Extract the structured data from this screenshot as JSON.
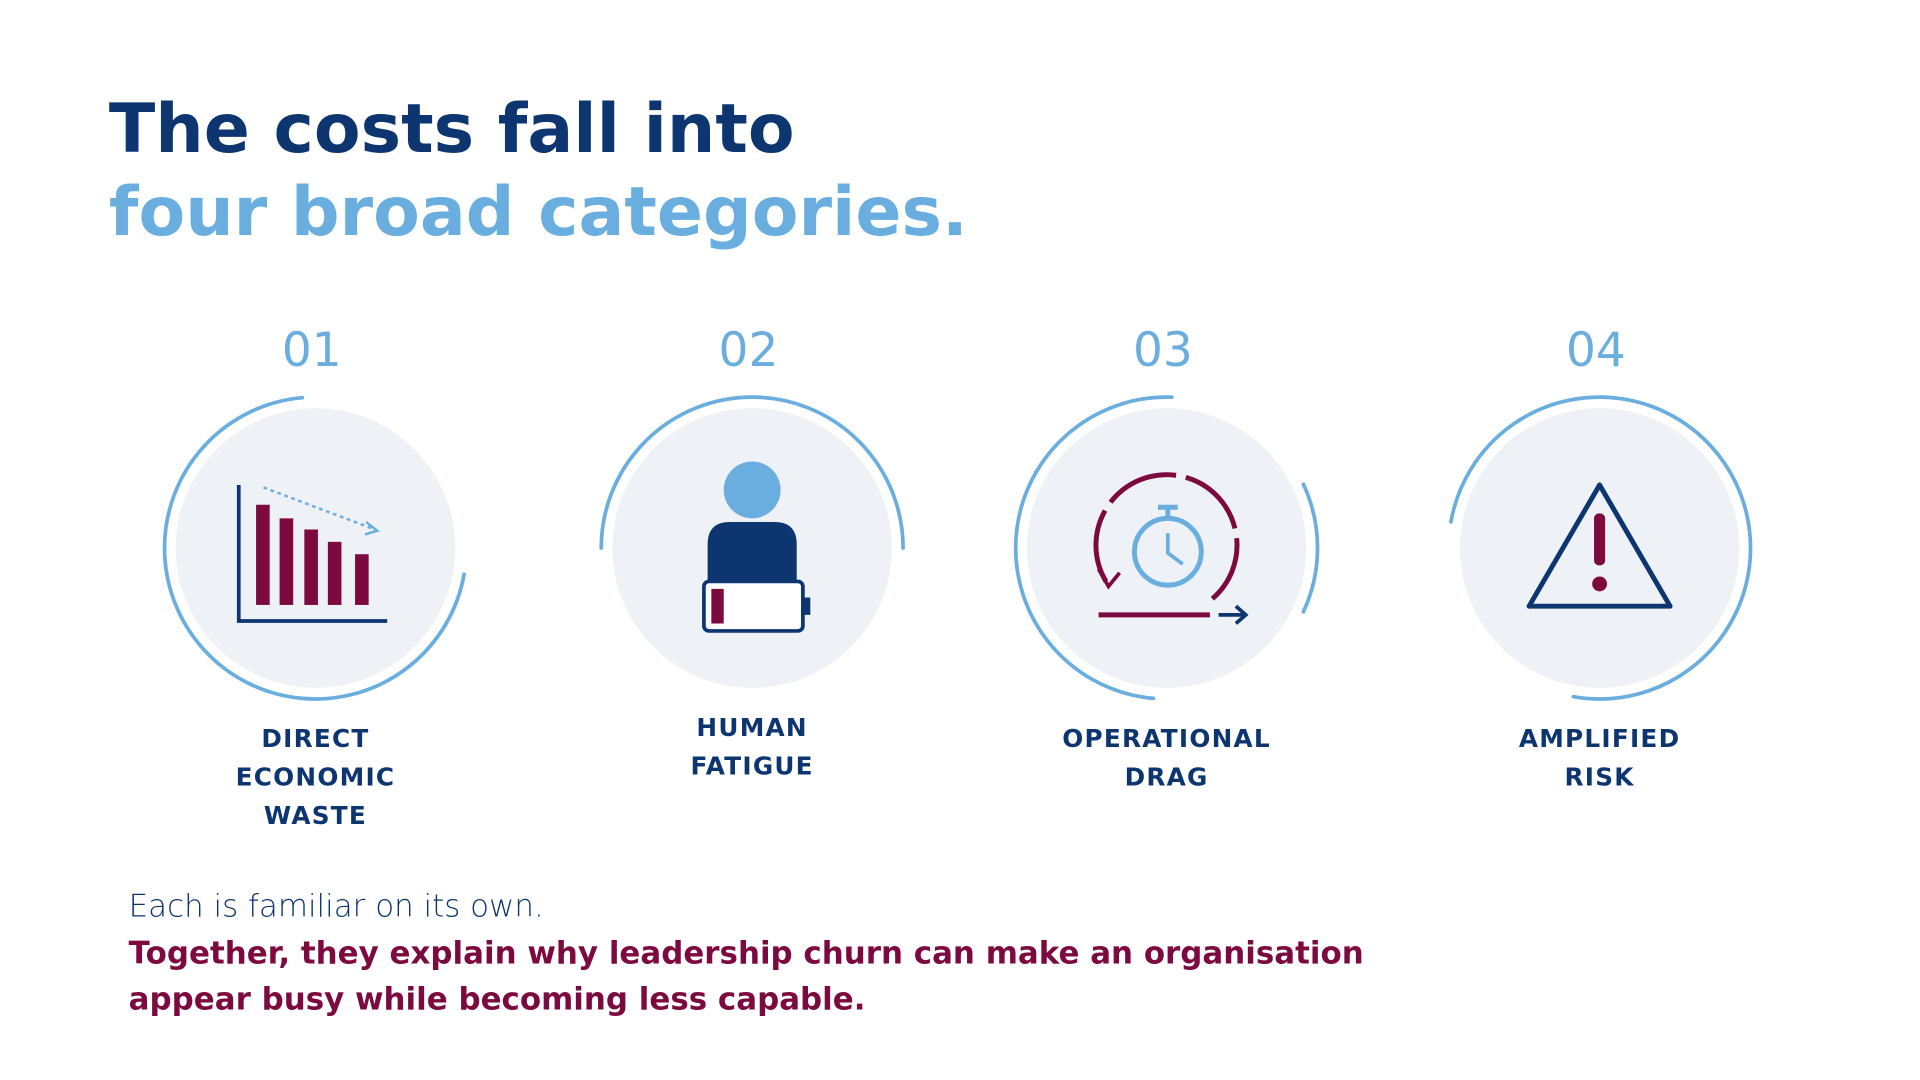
{
  "header": {
    "title_line1": "The costs fall into",
    "title_line2": "four broad categories."
  },
  "items": [
    {
      "number": "01",
      "label_lines": [
        "DIRECT",
        "ECONOMIC",
        "WASTE"
      ]
    },
    {
      "number": "02",
      "label_lines": [
        "HUMAN",
        "FATIGUE"
      ]
    },
    {
      "number": "03",
      "label_lines": [
        "OPERATIONAL",
        "DRAG"
      ]
    },
    {
      "number": "04",
      "label_lines": [
        "AMPLIFIED",
        "RISK"
      ]
    }
  ],
  "footer": {
    "intro": "Each is familiar on its own.",
    "emphasis_lines": [
      "Together, they explain why leadership churn can make an organisation",
      "appear busy while becoming less capable."
    ]
  }
}
